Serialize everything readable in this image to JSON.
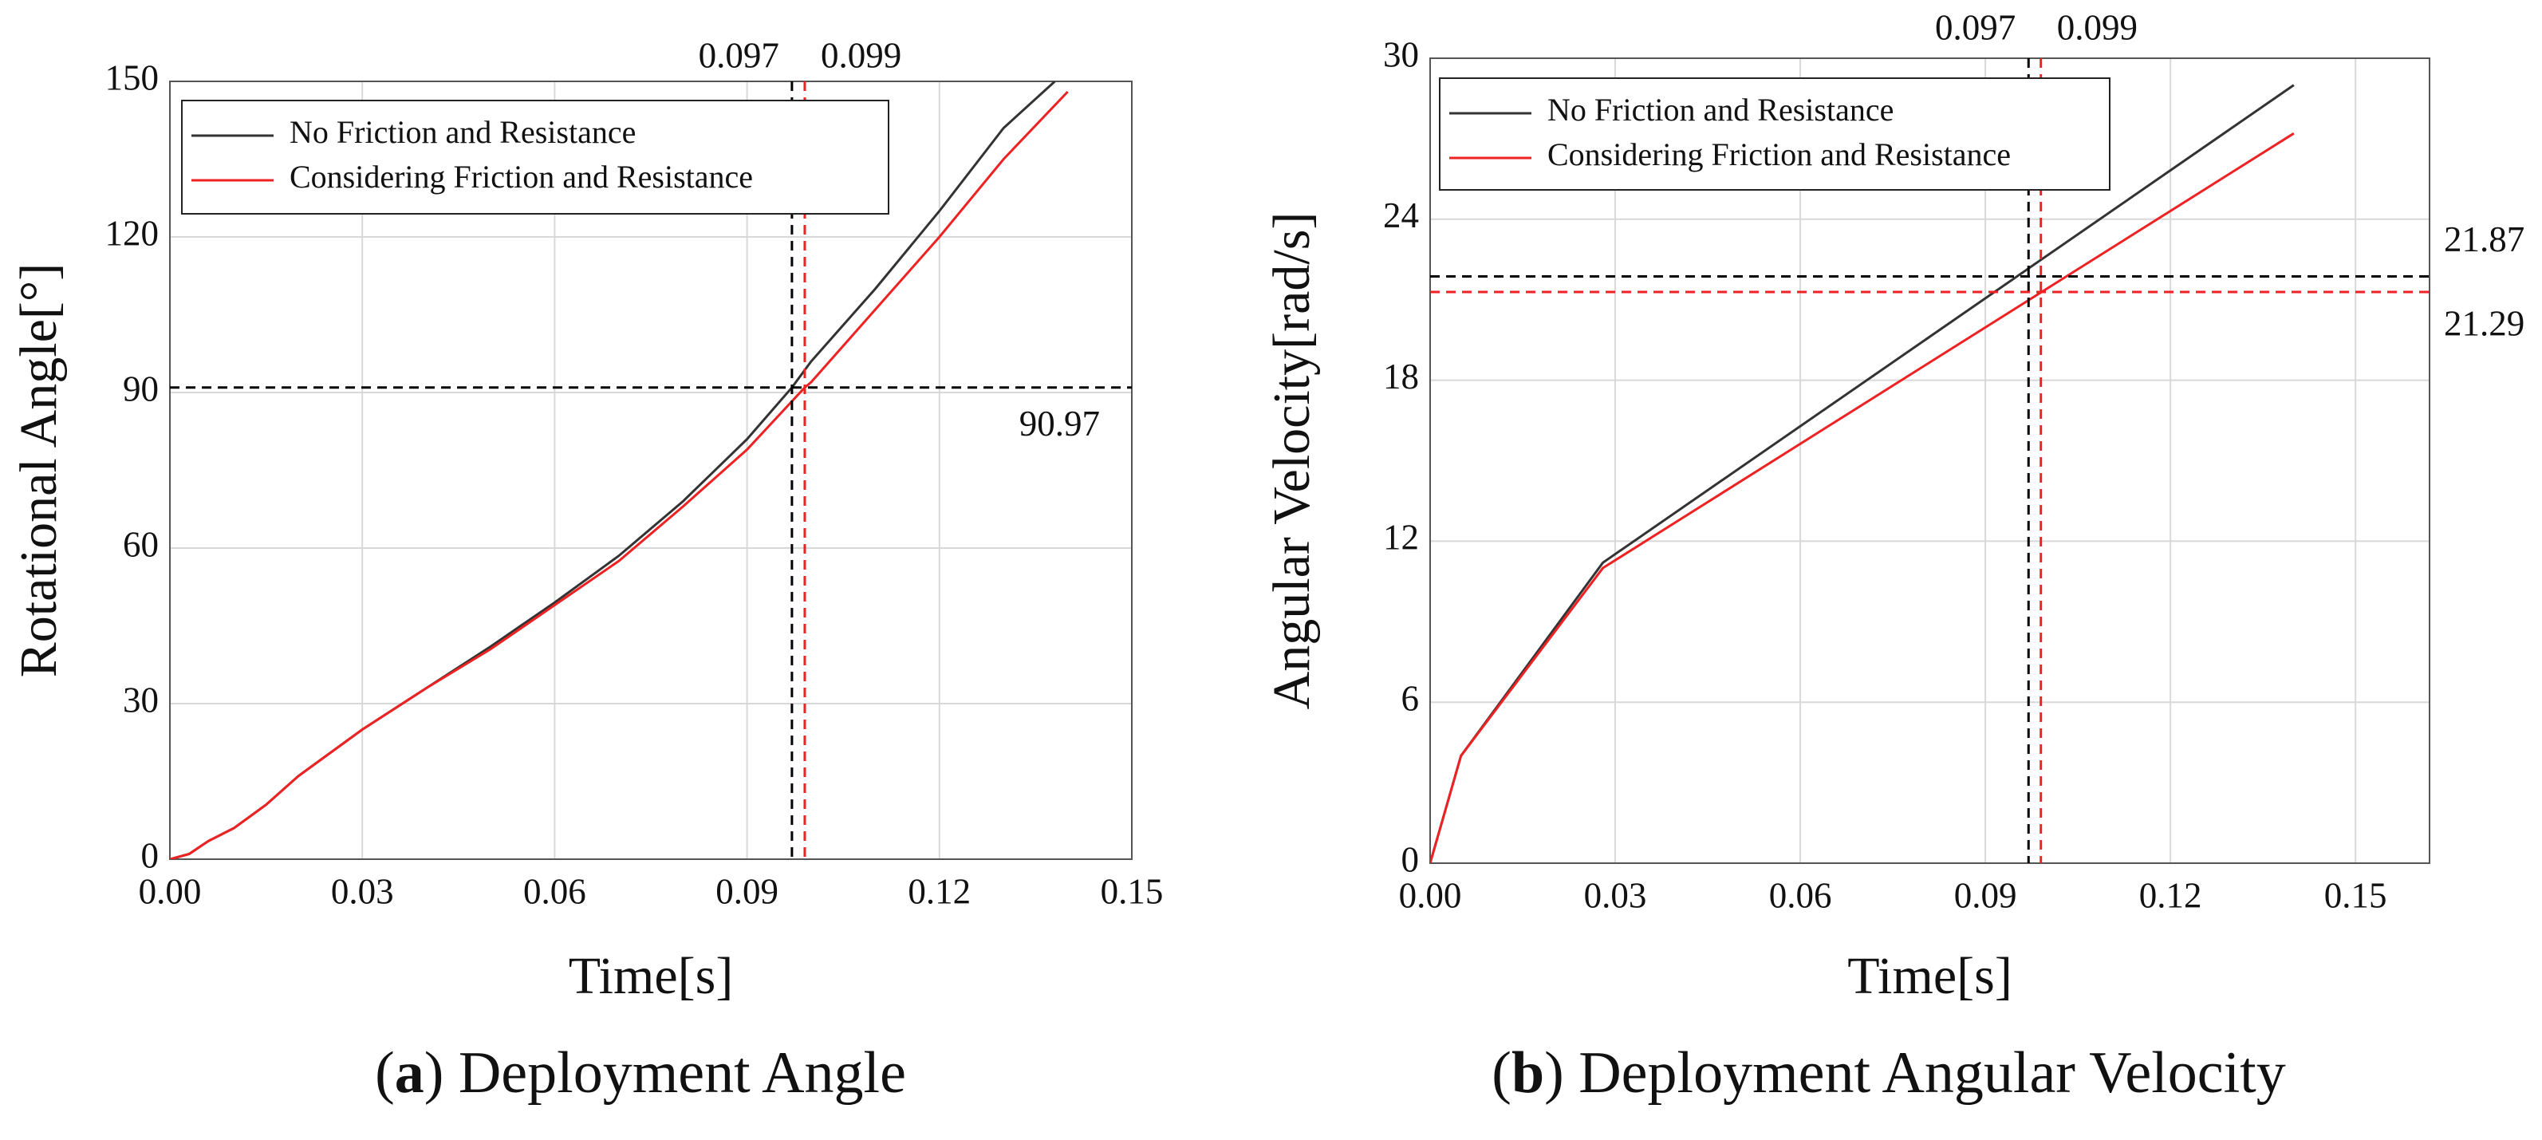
{
  "chart_data": [
    {
      "type": "line",
      "caption_parts": [
        "(",
        "a",
        ") Deployment Angle"
      ],
      "xlabel": "Time[s]",
      "ylabel": "Rotational Angle[°]",
      "xlim": [
        0,
        0.15
      ],
      "xticks": [
        {
          "value": 0,
          "label": "0.00"
        },
        0.03,
        0.06,
        0.09,
        0.12,
        0.15
      ],
      "ylim": [
        0,
        150
      ],
      "yticks": [
        0,
        30,
        60,
        90,
        120,
        150
      ],
      "grid": true,
      "legend": "upper left",
      "series": [
        {
          "name": "No Friction and Resistance",
          "color": "#333333",
          "x": [
            0,
            0.003,
            0.006,
            0.01,
            0.015,
            0.02,
            0.03,
            0.04,
            0.05,
            0.06,
            0.07,
            0.08,
            0.09,
            0.097,
            0.1,
            0.11,
            0.12,
            0.13,
            0.138
          ],
          "values": [
            0,
            1,
            3.5,
            6,
            10.5,
            16,
            25,
            33,
            41,
            49.5,
            58.5,
            69,
            81,
            90.97,
            96,
            110,
            125,
            141,
            150
          ]
        },
        {
          "name": "Considering Friction and Resistance",
          "color": "#ee2222",
          "x": [
            0,
            0.003,
            0.006,
            0.01,
            0.015,
            0.02,
            0.03,
            0.04,
            0.05,
            0.06,
            0.07,
            0.08,
            0.09,
            0.099,
            0.1,
            0.11,
            0.12,
            0.13,
            0.14
          ],
          "values": [
            0,
            1,
            3.5,
            6,
            10.5,
            16,
            25,
            33,
            40.5,
            49,
            57.5,
            68,
            79,
            90.97,
            92,
            106,
            120,
            135,
            148
          ]
        }
      ],
      "vlines": [
        {
          "x": 0.097,
          "color": "#000000"
        },
        {
          "x": 0.099,
          "color": "#ee2222"
        }
      ],
      "hlines": [
        {
          "y": 90.97,
          "color": "#000000"
        }
      ]
    },
    {
      "type": "line",
      "caption_parts": [
        "(",
        "b",
        ") Deployment Angular Velocity"
      ],
      "xlabel": "Time[s]",
      "ylabel": "Angular Velocity[rad/s]",
      "xlim": [
        0,
        0.162
      ],
      "xticks": [
        {
          "value": 0,
          "label": "0.00"
        },
        0.03,
        0.06,
        0.09,
        0.12,
        0.15
      ],
      "ylim": [
        0,
        30
      ],
      "yticks": [
        0,
        6,
        12,
        18,
        24,
        30
      ],
      "grid": true,
      "legend": "upper left",
      "series": [
        {
          "name": "No Friction and Resistance",
          "color": "#333333",
          "x": [
            0,
            0.005,
            0.028,
            0.14
          ],
          "values": [
            0,
            4,
            11.2,
            29
          ]
        },
        {
          "name": "Considering Friction and Resistance",
          "color": "#ee2222",
          "x": [
            0,
            0.005,
            0.028,
            0.14
          ],
          "values": [
            0,
            4,
            11,
            27.2
          ]
        }
      ],
      "vlines": [
        {
          "x": 0.097,
          "color": "#000000"
        },
        {
          "x": 0.099,
          "color": "#ee2222"
        }
      ],
      "hlines": [
        {
          "y": 21.87,
          "color": "#000000"
        },
        {
          "y": 21.29,
          "color": "#ee2222"
        }
      ]
    }
  ]
}
